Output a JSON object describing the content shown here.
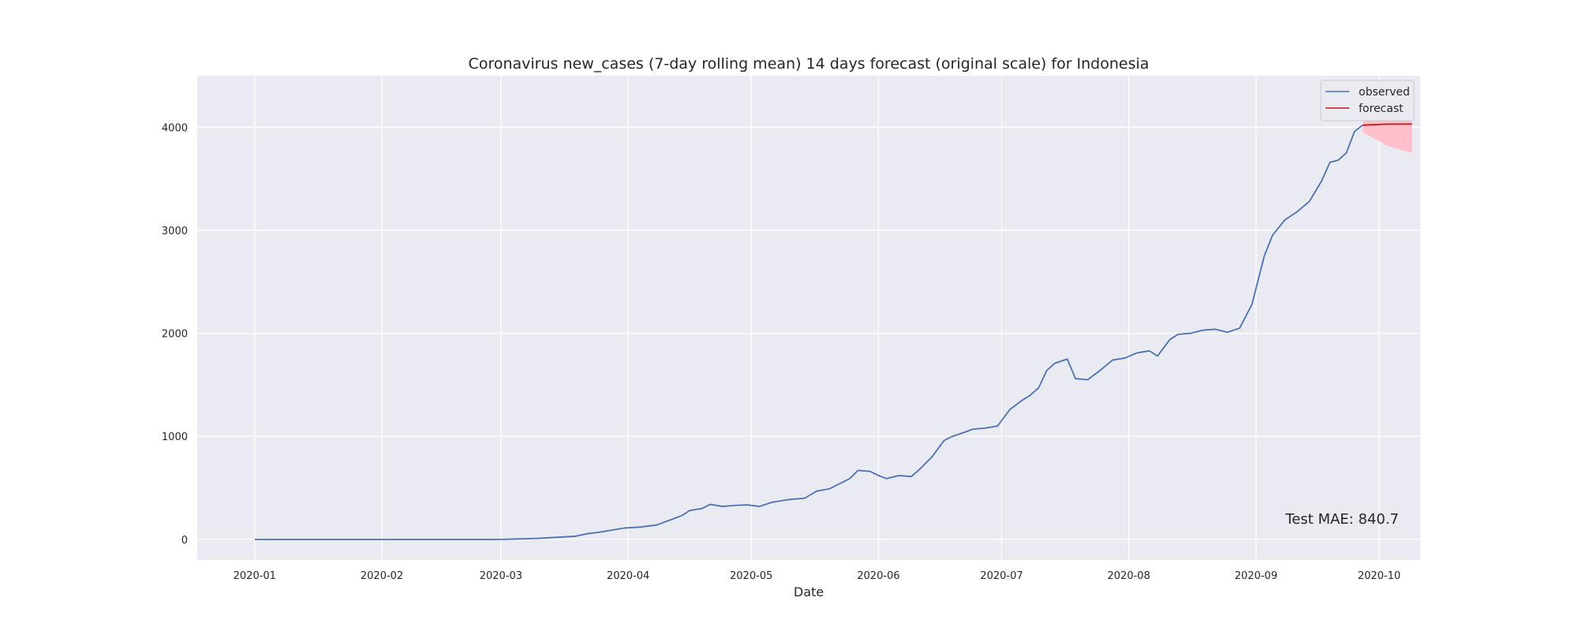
{
  "chart_data": {
    "type": "line",
    "title": "Coronavirus new_cases (7-day rolling mean) 14 days forecast (original scale) for Indonesia",
    "xlabel": "Date",
    "ylabel": "",
    "x_axis": "date",
    "xlim": [
      "2019-12-18",
      "2020-10-11"
    ],
    "ylim": [
      -200,
      4500
    ],
    "x_ticks": [
      "2020-01-01",
      "2020-02-01",
      "2020-03-01",
      "2020-04-01",
      "2020-05-01",
      "2020-06-01",
      "2020-07-01",
      "2020-08-01",
      "2020-09-01",
      "2020-10-01"
    ],
    "x_tick_labels": [
      "2020-01",
      "2020-02",
      "2020-03",
      "2020-04",
      "2020-05",
      "2020-06",
      "2020-07",
      "2020-08",
      "2020-09",
      "2020-10"
    ],
    "y_ticks": [
      0,
      1000,
      2000,
      3000,
      4000
    ],
    "y_tick_labels": [
      "0",
      "1000",
      "2000",
      "3000",
      "4000"
    ],
    "grid": true,
    "legend_position": "top-right",
    "annotation": "Test MAE: 840.7",
    "series": [
      {
        "name": "observed",
        "color": "#4c72b0",
        "points": [
          [
            "2020-01-01",
            0
          ],
          [
            "2020-03-01",
            0
          ],
          [
            "2020-03-10",
            10
          ],
          [
            "2020-03-19",
            30
          ],
          [
            "2020-03-22",
            55
          ],
          [
            "2020-03-25",
            70
          ],
          [
            "2020-03-28",
            90
          ],
          [
            "2020-03-31",
            110
          ],
          [
            "2020-04-04",
            120
          ],
          [
            "2020-04-08",
            140
          ],
          [
            "2020-04-12",
            200
          ],
          [
            "2020-04-14",
            230
          ],
          [
            "2020-04-16",
            280
          ],
          [
            "2020-04-19",
            300
          ],
          [
            "2020-04-21",
            340
          ],
          [
            "2020-04-24",
            320
          ],
          [
            "2020-04-27",
            330
          ],
          [
            "2020-04-30",
            335
          ],
          [
            "2020-05-03",
            320
          ],
          [
            "2020-05-06",
            360
          ],
          [
            "2020-05-09",
            380
          ],
          [
            "2020-05-11",
            390
          ],
          [
            "2020-05-14",
            400
          ],
          [
            "2020-05-17",
            470
          ],
          [
            "2020-05-20",
            490
          ],
          [
            "2020-05-22",
            530
          ],
          [
            "2020-05-25",
            590
          ],
          [
            "2020-05-27",
            670
          ],
          [
            "2020-05-30",
            660
          ],
          [
            "2020-06-01",
            620
          ],
          [
            "2020-06-03",
            590
          ],
          [
            "2020-06-06",
            620
          ],
          [
            "2020-06-09",
            610
          ],
          [
            "2020-06-11",
            680
          ],
          [
            "2020-06-14",
            800
          ],
          [
            "2020-06-17",
            960
          ],
          [
            "2020-06-19",
            1000
          ],
          [
            "2020-06-22",
            1040
          ],
          [
            "2020-06-24",
            1070
          ],
          [
            "2020-06-27",
            1080
          ],
          [
            "2020-06-30",
            1100
          ],
          [
            "2020-07-03",
            1260
          ],
          [
            "2020-07-06",
            1350
          ],
          [
            "2020-07-08",
            1400
          ],
          [
            "2020-07-10",
            1470
          ],
          [
            "2020-07-12",
            1640
          ],
          [
            "2020-07-14",
            1710
          ],
          [
            "2020-07-17",
            1750
          ],
          [
            "2020-07-19",
            1560
          ],
          [
            "2020-07-22",
            1550
          ],
          [
            "2020-07-25",
            1640
          ],
          [
            "2020-07-28",
            1740
          ],
          [
            "2020-07-31",
            1760
          ],
          [
            "2020-08-03",
            1810
          ],
          [
            "2020-08-06",
            1830
          ],
          [
            "2020-08-08",
            1780
          ],
          [
            "2020-08-11",
            1940
          ],
          [
            "2020-08-13",
            1990
          ],
          [
            "2020-08-16",
            2000
          ],
          [
            "2020-08-19",
            2030
          ],
          [
            "2020-08-22",
            2040
          ],
          [
            "2020-08-25",
            2010
          ],
          [
            "2020-08-28",
            2050
          ],
          [
            "2020-08-31",
            2280
          ],
          [
            "2020-09-03",
            2750
          ],
          [
            "2020-09-05",
            2950
          ],
          [
            "2020-09-08",
            3100
          ],
          [
            "2020-09-11",
            3180
          ],
          [
            "2020-09-14",
            3280
          ],
          [
            "2020-09-17",
            3480
          ],
          [
            "2020-09-19",
            3660
          ],
          [
            "2020-09-21",
            3680
          ],
          [
            "2020-09-23",
            3750
          ],
          [
            "2020-09-25",
            3960
          ],
          [
            "2020-09-27",
            4020
          ]
        ]
      },
      {
        "name": "forecast",
        "color": "#c01818",
        "points": [
          [
            "2020-09-27",
            4020
          ],
          [
            "2020-10-03",
            4030
          ],
          [
            "2020-10-09",
            4030
          ]
        ],
        "interval": {
          "color": "#ffc0cb",
          "upper": [
            [
              "2020-09-27",
              4110
            ],
            [
              "2020-10-03",
              4140
            ],
            [
              "2020-10-09",
              4130
            ]
          ],
          "lower": [
            [
              "2020-09-27",
              3950
            ],
            [
              "2020-10-03",
              3820
            ],
            [
              "2020-10-09",
              3750
            ]
          ]
        }
      }
    ]
  }
}
